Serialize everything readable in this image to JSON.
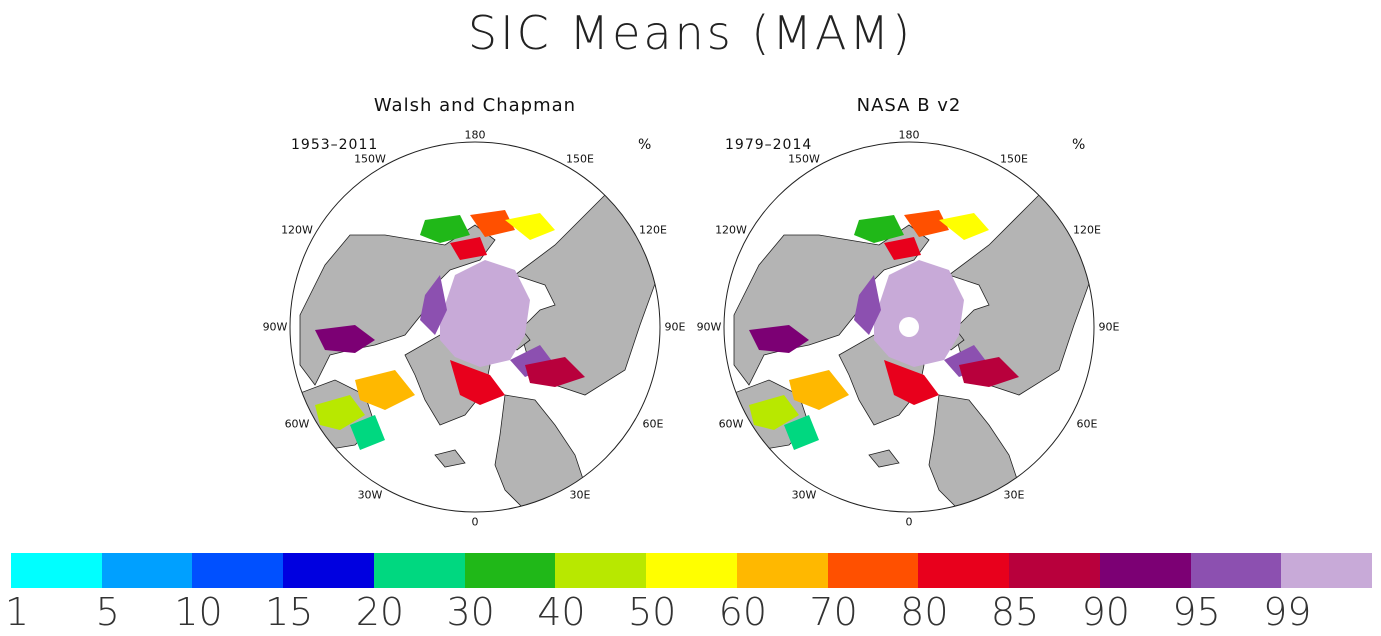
{
  "title": "SIC Means (MAM)",
  "panels": [
    {
      "title": "Walsh and Chapman",
      "period": "1953–2011",
      "unit": "%",
      "longitude_labels": {
        "top": "180",
        "tl": "150W",
        "tr": "150E",
        "ul": "120W",
        "ur": "120E",
        "ml": "90W",
        "mr": "90E",
        "ll": "60W",
        "lr": "60E",
        "bl": "30W",
        "br": "30E",
        "bottom": "0"
      },
      "pole_hole": false
    },
    {
      "title": "NASA B v2",
      "period": "1979–2014",
      "unit": "%",
      "longitude_labels": {
        "top": "180",
        "tl": "150W",
        "tr": "150E",
        "ul": "120W",
        "ur": "120E",
        "ml": "90W",
        "mr": "90E",
        "ll": "60W",
        "lr": "60E",
        "bl": "30W",
        "br": "30E",
        "bottom": "0"
      },
      "pole_hole": true
    }
  ],
  "colorbar": {
    "colors": [
      "#00ffff",
      "#00a0ff",
      "#0050ff",
      "#0000e0",
      "#00d880",
      "#20b818",
      "#b8e800",
      "#ffff00",
      "#ffb800",
      "#ff5000",
      "#e8001c",
      "#b8003c",
      "#7c0074",
      "#8c50b0",
      "#c8aad8"
    ],
    "tick_labels": [
      "1",
      "5",
      "10",
      "15",
      "20",
      "30",
      "40",
      "50",
      "60",
      "70",
      "80",
      "85",
      "90",
      "95",
      "99"
    ]
  },
  "legend_colors": {
    "land": "#b4b4b4",
    "ocean": "#ffffff",
    "coast": "#222222"
  }
}
